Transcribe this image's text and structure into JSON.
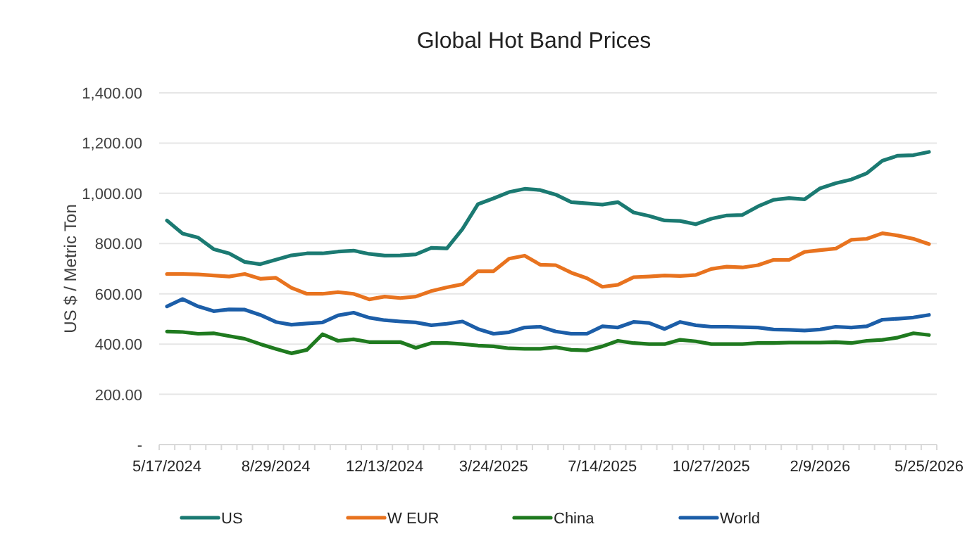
{
  "chart_data": {
    "type": "line",
    "title": "Global Hot Band Prices",
    "ylabel": "US $ / Metric Ton",
    "categories": [
      "5/17/2024",
      null,
      null,
      null,
      null,
      null,
      null,
      "8/29/2024",
      null,
      null,
      null,
      null,
      null,
      null,
      "12/13/2024",
      null,
      null,
      null,
      null,
      null,
      null,
      "3/24/2025",
      null,
      null,
      null,
      null,
      null,
      null,
      "7/14/2025",
      null,
      null,
      null,
      null,
      null,
      null,
      "10/27/2025",
      null,
      null,
      null,
      null,
      null,
      null,
      "2/9/2026",
      null,
      null,
      null,
      null,
      null,
      null,
      "5/25/2026"
    ],
    "series": [
      {
        "name": "US",
        "color": "#1b7a72",
        "values": [
          892,
          840,
          824,
          778,
          761,
          727,
          718,
          736,
          753,
          761,
          761,
          768,
          772,
          759,
          752,
          753,
          757,
          783,
          781,
          858,
          957,
          980,
          1005,
          1018,
          1013,
          995,
          965,
          960,
          955,
          965,
          924,
          910,
          892,
          890,
          877,
          899,
          912,
          914,
          948,
          974,
          981,
          976,
          1020,
          1040,
          1055,
          1080,
          1130,
          1150,
          1152,
          1165
        ]
      },
      {
        "name": "W EUR",
        "color": "#e8731f",
        "values": [
          679,
          679,
          677,
          673,
          669,
          679,
          660,
          664,
          624,
          600,
          600,
          607,
          600,
          578,
          589,
          583,
          589,
          611,
          626,
          638,
          690,
          690,
          740,
          752,
          716,
          714,
          684,
          662,
          628,
          636,
          666,
          669,
          673,
          671,
          675,
          699,
          708,
          705,
          714,
          735,
          735,
          767,
          774,
          780,
          815,
          819,
          841,
          832,
          819,
          798
        ]
      },
      {
        "name": "China",
        "color": "#1f7a1f",
        "values": [
          450,
          448,
          441,
          443,
          432,
          421,
          400,
          381,
          363,
          377,
          439,
          413,
          419,
          408,
          408,
          408,
          385,
          404,
          404,
          400,
          394,
          391,
          383,
          381,
          381,
          387,
          377,
          375,
          391,
          413,
          404,
          400,
          400,
          417,
          411,
          400,
          400,
          400,
          404,
          404,
          406,
          406,
          406,
          408,
          404,
          413,
          417,
          426,
          443,
          436
        ]
      },
      {
        "name": "World",
        "color": "#1c5ea8",
        "values": [
          550,
          579,
          550,
          531,
          538,
          537,
          516,
          488,
          477,
          482,
          486,
          514,
          525,
          505,
          495,
          490,
          486,
          475,
          481,
          490,
          460,
          441,
          447,
          466,
          469,
          450,
          441,
          441,
          471,
          466,
          488,
          484,
          460,
          488,
          475,
          469,
          469,
          467,
          466,
          458,
          457,
          454,
          458,
          469,
          466,
          471,
          497,
          501,
          506,
          516
        ]
      }
    ],
    "ylim": [
      0,
      1400
    ],
    "yticks": [
      {
        "value": 0,
        "label": "-"
      },
      {
        "value": 200,
        "label": "200.00"
      },
      {
        "value": 400,
        "label": "400.00"
      },
      {
        "value": 600,
        "label": "600.00"
      },
      {
        "value": 800,
        "label": "800.00"
      },
      {
        "value": 1000,
        "label": "1,000.00"
      },
      {
        "value": 1200,
        "label": "1,200.00"
      },
      {
        "value": 1400,
        "label": "1,400.00"
      }
    ],
    "grid": "y",
    "legend": "bottom",
    "marker": "none",
    "line_style": "solid"
  }
}
